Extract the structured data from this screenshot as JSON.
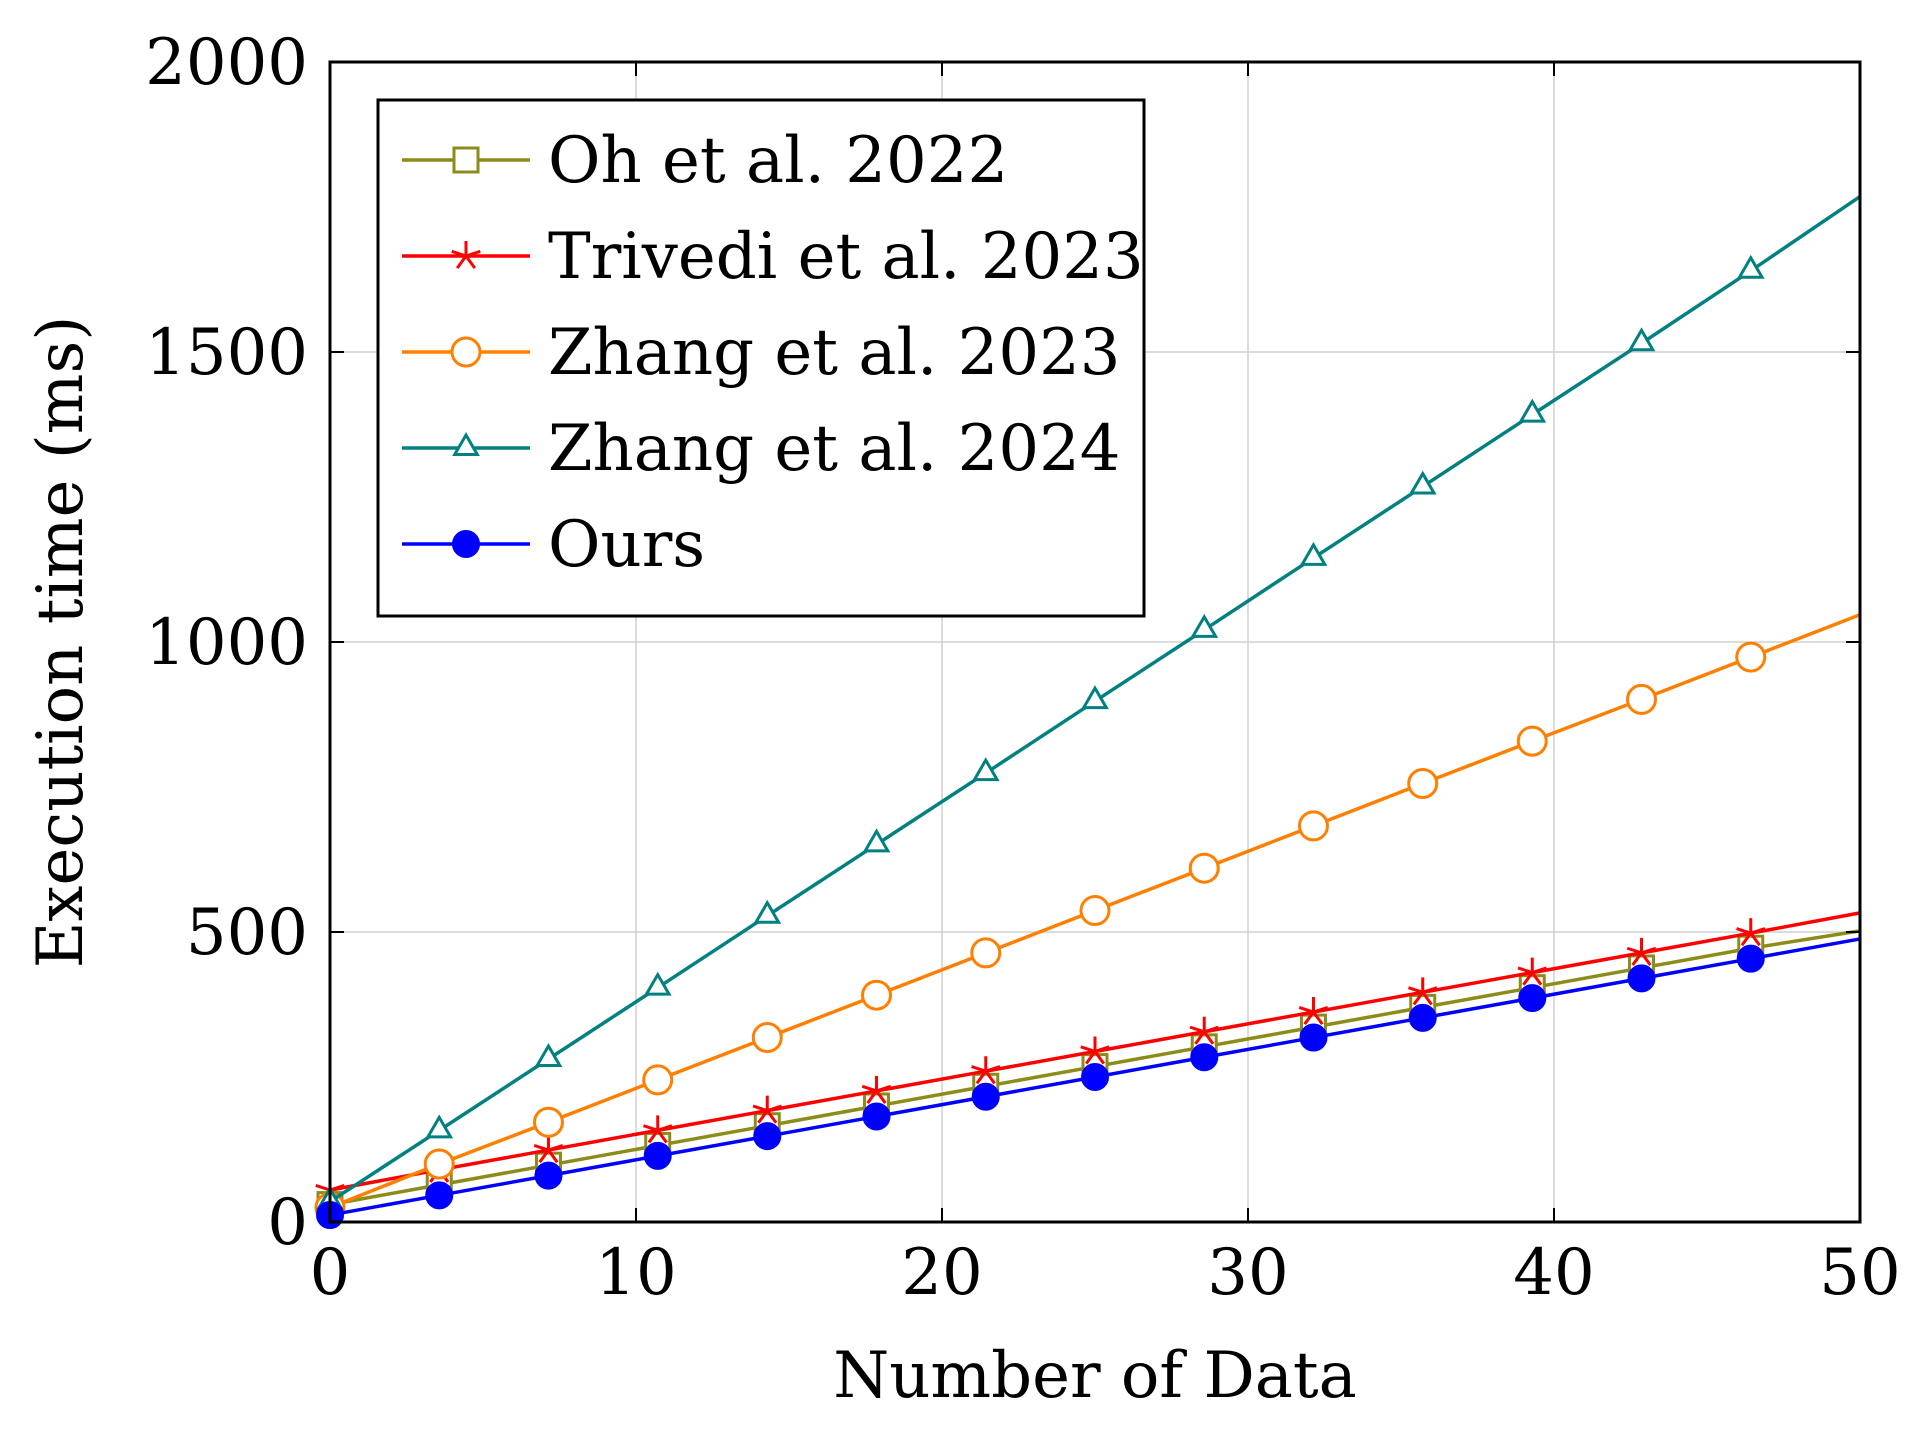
{
  "chart_data": {
    "type": "line",
    "title": "",
    "xlabel": "Number of Data",
    "ylabel": "Execution time (ms)",
    "xlim": [
      0,
      50
    ],
    "ylim": [
      0,
      2000
    ],
    "xticks": [
      0,
      10,
      20,
      30,
      40,
      50
    ],
    "yticks": [
      0,
      500,
      1000,
      1500,
      2000
    ],
    "grid": true,
    "legend_position": "top-left",
    "series": [
      {
        "name": "Oh et al. 2022",
        "color": "#8c8c1a",
        "marker": "square",
        "x": [
          0,
          3.57,
          7.14,
          10.71,
          14.29,
          17.86,
          21.43,
          25,
          28.57,
          32.14,
          35.71,
          39.29,
          42.86,
          46.43,
          50
        ],
        "y": [
          30,
          64,
          98,
          132,
          166,
          200,
          234,
          268,
          302,
          336,
          370,
          404,
          438,
          472,
          502
        ]
      },
      {
        "name": "Trivedi et al. 2023",
        "color": "#ff0000",
        "marker": "star",
        "x": [
          0,
          3.57,
          7.14,
          10.71,
          14.29,
          17.86,
          21.43,
          25,
          28.57,
          32.14,
          35.71,
          39.29,
          42.86,
          46.43,
          50
        ],
        "y": [
          55,
          90,
          124,
          158,
          192,
          226,
          260,
          294,
          328,
          362,
          396,
          430,
          464,
          498,
          533
        ]
      },
      {
        "name": "Zhang et al. 2023",
        "color": "#ff8000",
        "marker": "circle-open",
        "x": [
          0,
          3.57,
          7.14,
          10.71,
          14.29,
          17.86,
          21.43,
          25,
          28.57,
          32.14,
          35.71,
          39.29,
          42.86,
          46.43,
          50
        ],
        "y": [
          25,
          100,
          172,
          245,
          318,
          391,
          464,
          537,
          610,
          683,
          756,
          829,
          901,
          974,
          1047
        ]
      },
      {
        "name": "Zhang et al. 2024",
        "color": "#008080",
        "marker": "triangle",
        "x": [
          0,
          3.57,
          7.14,
          10.71,
          14.29,
          17.86,
          21.43,
          25,
          28.57,
          32.14,
          35.71,
          39.29,
          42.86,
          46.43,
          50
        ],
        "y": [
          35,
          158,
          281,
          404,
          528,
          651,
          774,
          898,
          1021,
          1145,
          1268,
          1392,
          1515,
          1640,
          1768
        ]
      },
      {
        "name": "Ours",
        "color": "#0000ff",
        "marker": "circle-filled",
        "x": [
          0,
          3.57,
          7.14,
          10.71,
          14.29,
          17.86,
          21.43,
          25,
          28.57,
          32.14,
          35.71,
          39.29,
          42.86,
          46.43,
          50
        ],
        "y": [
          12,
          46,
          80,
          114,
          148,
          182,
          216,
          250,
          284,
          318,
          352,
          386,
          420,
          454,
          488
        ]
      }
    ]
  }
}
